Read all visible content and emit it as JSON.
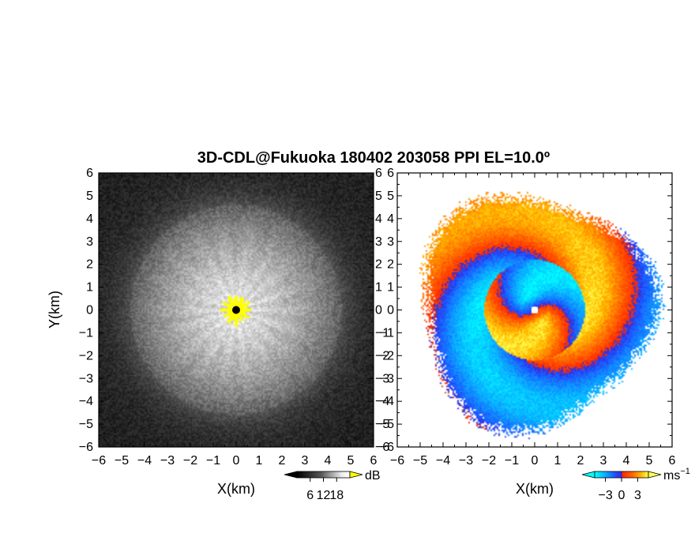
{
  "chart_data": [
    {
      "type": "heatmap",
      "panel": "backscatter intensity",
      "title": "3D-CDL@Fukuoka 180402 203058 PPI EL=10.0º",
      "xlabel": "X(km)",
      "ylabel": "Y(km)",
      "xlim": [
        -6,
        6
      ],
      "ylim": [
        -6,
        6
      ],
      "xticks": [
        "−6",
        "−5",
        "−4",
        "−3",
        "−2",
        "−1",
        "0",
        "1",
        "2",
        "3",
        "4",
        "5",
        "6"
      ],
      "yticks": [
        "6",
        "5",
        "4",
        "3",
        "2",
        "1",
        "0",
        "−1",
        "−2",
        "−3",
        "−4",
        "−5",
        "−6"
      ],
      "colorbar": {
        "unit": "dB",
        "ticks": [
          "6",
          "12",
          "18"
        ],
        "range": [
          0,
          24
        ],
        "colormap": "grayscale",
        "high_color": "#ffff00"
      },
      "features": {
        "echo_radius_km": 4.6,
        "saturated_core_radius_km": 0.6,
        "center_marker": "black dot"
      }
    },
    {
      "type": "heatmap",
      "panel": "doppler radial velocity",
      "xlabel": "X(km)",
      "ylabel": "",
      "xlim": [
        -6,
        6
      ],
      "ylim": [
        -6,
        6
      ],
      "xticks": [
        "−6",
        "−5",
        "−4",
        "−3",
        "−2",
        "−1",
        "0",
        "1",
        "2",
        "3",
        "4",
        "5",
        "6"
      ],
      "yticks": [
        "6",
        "5",
        "4",
        "3",
        "2",
        "1",
        "0",
        "−1",
        "−2",
        "−3",
        "−4",
        "−5",
        "−6"
      ],
      "colorbar": {
        "unit": "ms",
        "unit_exponent": "−1",
        "ticks": [
          "−3",
          "0",
          "3"
        ],
        "range": [
          -5,
          5
        ],
        "colormap": "cyan-blue-red-yellow"
      },
      "features": {
        "echo_radius_km": 5.0,
        "inner_reversal_radius_km": 2.2,
        "center_marker": "white dot"
      }
    }
  ],
  "colors": {
    "background": "#ffffff",
    "axis": "#000000",
    "intensity_saturation": "#ffff00",
    "velocity_negative_far": "#00ffff",
    "velocity_negative": "#1e64ff",
    "velocity_positive": "#ff2800",
    "velocity_positive_far": "#ffff50"
  }
}
